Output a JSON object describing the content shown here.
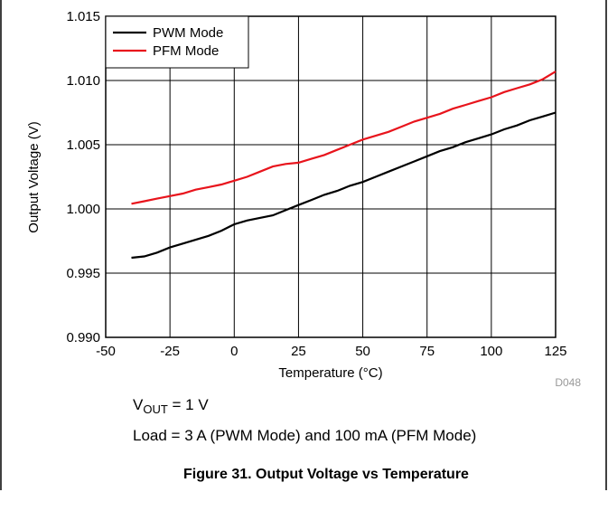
{
  "chart_data": {
    "type": "line",
    "xlabel": "Temperature  (°C)",
    "ylabel": "Output Voltage (V)",
    "x": [
      -40,
      -35,
      -30,
      -25,
      -20,
      -15,
      -10,
      -5,
      0,
      5,
      10,
      15,
      20,
      25,
      30,
      35,
      40,
      45,
      50,
      55,
      60,
      65,
      70,
      75,
      80,
      85,
      90,
      95,
      100,
      105,
      110,
      115,
      120,
      125
    ],
    "series": [
      {
        "name": "PWM Mode",
        "color": "#000000",
        "values": [
          0.9962,
          0.9963,
          0.9966,
          0.997,
          0.9973,
          0.9976,
          0.9979,
          0.9983,
          0.9988,
          0.9991,
          0.9993,
          0.9995,
          0.9999,
          1.0003,
          1.0007,
          1.0011,
          1.0014,
          1.0018,
          1.0021,
          1.0025,
          1.0029,
          1.0033,
          1.0037,
          1.0041,
          1.0045,
          1.0048,
          1.0052,
          1.0055,
          1.0058,
          1.0062,
          1.0065,
          1.0069,
          1.0072,
          1.0075
        ]
      },
      {
        "name": "PFM Mode",
        "color": "#e8141c",
        "values": [
          1.0004,
          1.0006,
          1.0008,
          1.001,
          1.0012,
          1.0015,
          1.0017,
          1.0019,
          1.0022,
          1.0025,
          1.0029,
          1.0033,
          1.0035,
          1.0036,
          1.0039,
          1.0042,
          1.0046,
          1.005,
          1.0054,
          1.0057,
          1.006,
          1.0064,
          1.0068,
          1.0071,
          1.0074,
          1.0078,
          1.0081,
          1.0084,
          1.0087,
          1.0091,
          1.0094,
          1.0097,
          1.0101,
          1.0107
        ]
      }
    ],
    "xlim": [
      -50,
      125
    ],
    "xticks": [
      -50,
      -25,
      0,
      25,
      50,
      75,
      100,
      125
    ],
    "ylim": [
      0.99,
      1.015
    ],
    "yticks": [
      {
        "value": 0.99,
        "label": "0.990"
      },
      0.995,
      {
        "value": 1.0,
        "label": "1.000"
      },
      1.005,
      {
        "value": 1.01,
        "label": "1.010"
      },
      1.015
    ],
    "grid": true,
    "legend": "upper left",
    "code": "D048"
  },
  "notes": {
    "vout": {
      "prefix": "V",
      "subscript": "OUT",
      "suffix": " = 1 V"
    },
    "load": "Load = 3 A (PWM Mode) and 100 mA (PFM Mode)"
  },
  "caption": "Figure 31. Output Voltage vs Temperature"
}
